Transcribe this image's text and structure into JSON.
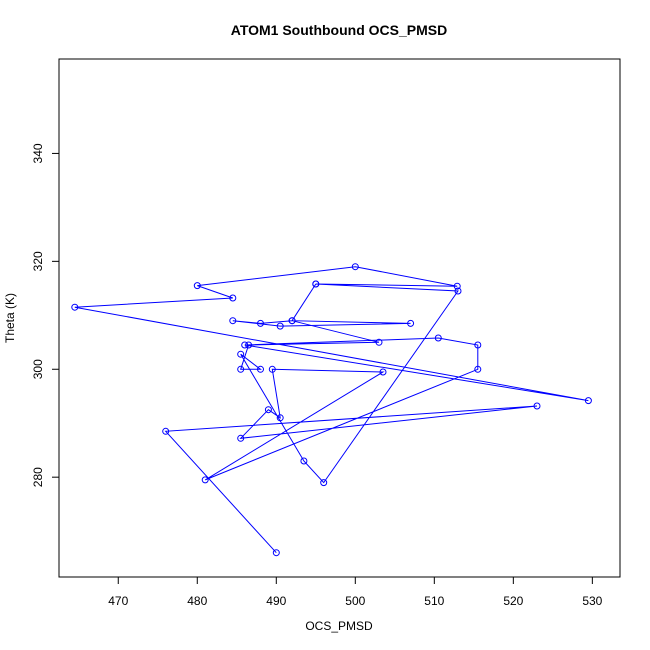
{
  "chart_data": {
    "type": "line",
    "markers": "open-circle",
    "title": "ATOM1 Southbound OCS_PMSD",
    "xlabel": "OCS_PMSD",
    "ylabel": "Theta (K)",
    "xlim": [
      462.5,
      533.5
    ],
    "ylim": [
      261.5,
      357.5
    ],
    "xticks": [
      470,
      480,
      490,
      500,
      510,
      520,
      530
    ],
    "yticks": [
      280,
      300,
      320,
      340
    ],
    "series_color": "#0000ff",
    "series": [
      {
        "points": [
          [
            490.0,
            266.0
          ],
          [
            476.0,
            288.5
          ],
          [
            523.0,
            293.2
          ],
          [
            485.5,
            287.2
          ],
          [
            489.0,
            292.5
          ],
          [
            490.5,
            291.0
          ],
          [
            489.5,
            300.0
          ],
          [
            503.5,
            299.5
          ],
          [
            481.0,
            279.5
          ],
          [
            515.5,
            300.0
          ],
          [
            515.5,
            304.5
          ],
          [
            510.5,
            305.8
          ],
          [
            486.0,
            304.5
          ],
          [
            529.5,
            294.2
          ],
          [
            464.5,
            311.5
          ],
          [
            484.5,
            313.2
          ],
          [
            480.0,
            315.5
          ],
          [
            500.0,
            319.0
          ],
          [
            512.9,
            315.4
          ],
          [
            495.0,
            315.8
          ],
          [
            513.0,
            314.5
          ],
          [
            496.0,
            279.0
          ],
          [
            493.5,
            283.0
          ],
          [
            485.5,
            302.8
          ],
          [
            488.0,
            300.0
          ],
          [
            485.5,
            300.0
          ],
          [
            486.5,
            304.5
          ],
          [
            503.0,
            305.0
          ],
          [
            492.0,
            309.0
          ],
          [
            488.0,
            308.5
          ],
          [
            484.5,
            309.0
          ],
          [
            490.5,
            308.0
          ],
          [
            507.0,
            308.5
          ],
          [
            492.0,
            309.0
          ],
          [
            495.0,
            315.8
          ]
        ]
      }
    ]
  }
}
